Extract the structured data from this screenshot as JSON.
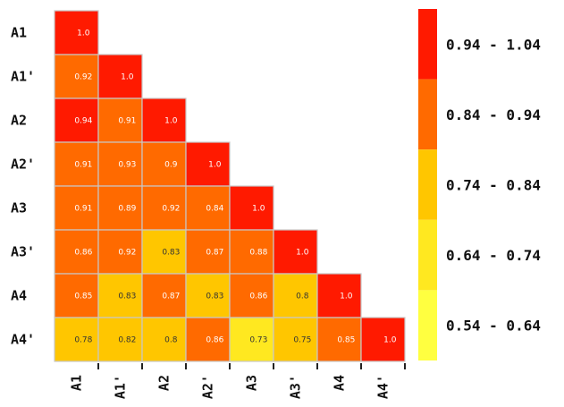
{
  "chart_data": {
    "type": "heatmap",
    "row_labels": [
      "A1",
      "A1'",
      "A2",
      "A2'",
      "A3",
      "A3'",
      "A4",
      "A4'"
    ],
    "col_labels": [
      "A1",
      "A1'",
      "A2",
      "A2'",
      "A3",
      "A3'",
      "A4",
      "A4'"
    ],
    "matrix": [
      [
        "1.0"
      ],
      [
        "0.92",
        "1.0"
      ],
      [
        "0.94",
        "0.91",
        "1.0"
      ],
      [
        "0.91",
        "0.93",
        "0.9",
        "1.0"
      ],
      [
        "0.91",
        "0.89",
        "0.92",
        "0.84",
        "1.0"
      ],
      [
        "0.86",
        "0.92",
        "0.83",
        "0.87",
        "0.88",
        "1.0"
      ],
      [
        "0.85",
        "0.83",
        "0.87",
        "0.83",
        "0.86",
        "0.8",
        "1.0"
      ],
      [
        "0.78",
        "0.82",
        "0.8",
        "0.86",
        "0.73",
        "0.75",
        "0.85",
        "1.0"
      ]
    ],
    "legend": [
      {
        "label": "0.94 - 1.04",
        "min": 0.94,
        "max": 1.04,
        "color": "#ff1a00"
      },
      {
        "label": "0.84 - 0.94",
        "min": 0.84,
        "max": 0.94,
        "color": "#ff6a00"
      },
      {
        "label": "0.74 - 0.84",
        "min": 0.74,
        "max": 0.84,
        "color": "#ffc600"
      },
      {
        "label": "0.64 - 0.74",
        "min": 0.64,
        "max": 0.74,
        "color": "#ffe820"
      },
      {
        "label": "0.54 - 0.64",
        "min": 0.54,
        "max": 0.64,
        "color": "#ffff40"
      }
    ],
    "grid_color": "#c8c8c8"
  }
}
